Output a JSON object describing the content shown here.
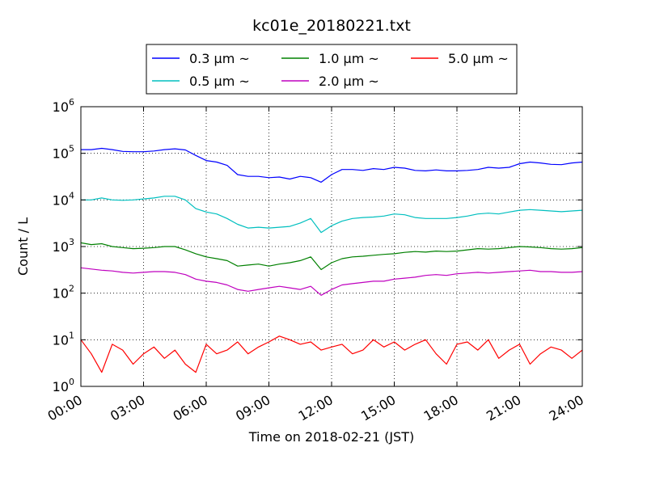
{
  "chart_data": {
    "type": "line",
    "title": "kc01e_20180221.txt",
    "xlabel": "Time on 2018-02-21 (JST)",
    "ylabel": "Count / L",
    "yscale": "log",
    "ylim": [
      1,
      1000000
    ],
    "xlim": [
      "00:00",
      "24:00"
    ],
    "x_ticks": [
      "00:00",
      "03:00",
      "06:00",
      "09:00",
      "12:00",
      "15:00",
      "18:00",
      "21:00",
      "24:00"
    ],
    "y_ticks": [
      {
        "base": "10",
        "exp": "0",
        "value": 1
      },
      {
        "base": "10",
        "exp": "1",
        "value": 10
      },
      {
        "base": "10",
        "exp": "2",
        "value": 100
      },
      {
        "base": "10",
        "exp": "3",
        "value": 1000
      },
      {
        "base": "10",
        "exp": "4",
        "value": 10000
      },
      {
        "base": "10",
        "exp": "5",
        "value": 100000
      },
      {
        "base": "10",
        "exp": "6",
        "value": 1000000
      }
    ],
    "grid": true,
    "legend_position": "top-center",
    "x_hours": [
      0,
      0.5,
      1,
      1.5,
      2,
      2.5,
      3,
      3.5,
      4,
      4.5,
      5,
      5.5,
      6,
      6.5,
      7,
      7.5,
      8,
      8.5,
      9,
      9.5,
      10,
      10.5,
      11,
      11.5,
      12,
      12.5,
      13,
      13.5,
      14,
      14.5,
      15,
      15.5,
      16,
      16.5,
      17,
      17.5,
      18,
      18.5,
      19,
      19.5,
      20,
      20.5,
      21,
      21.5,
      22,
      22.5,
      23,
      23.5,
      24
    ],
    "series": [
      {
        "name": "0.3 μm ~",
        "color": "#0000ff",
        "values": [
          120000,
          120000,
          128000,
          120000,
          110000,
          108000,
          108000,
          112000,
          120000,
          125000,
          118000,
          90000,
          70000,
          65000,
          55000,
          35000,
          32000,
          32000,
          30000,
          31000,
          28000,
          32000,
          30000,
          24000,
          35000,
          45000,
          45000,
          43000,
          47000,
          45000,
          50000,
          48000,
          43000,
          42000,
          44000,
          42000,
          42000,
          43000,
          45000,
          50000,
          48000,
          50000,
          60000,
          65000,
          62000,
          58000,
          57000,
          62000,
          65000
        ]
      },
      {
        "name": "0.5 μm ~",
        "color": "#00bfbf",
        "values": [
          10000,
          10000,
          11000,
          10000,
          9800,
          10000,
          10500,
          11000,
          12000,
          12000,
          10000,
          6500,
          5500,
          5000,
          4000,
          3000,
          2500,
          2600,
          2500,
          2600,
          2700,
          3200,
          4000,
          2000,
          2800,
          3500,
          4000,
          4200,
          4300,
          4500,
          5000,
          4800,
          4200,
          4000,
          4000,
          4000,
          4200,
          4500,
          5000,
          5200,
          5000,
          5500,
          6000,
          6200,
          6000,
          5800,
          5600,
          5800,
          6000
        ]
      },
      {
        "name": "1.0 μm ~",
        "color": "#008000",
        "values": [
          1200,
          1100,
          1150,
          1000,
          950,
          900,
          920,
          950,
          1000,
          1000,
          850,
          700,
          600,
          550,
          500,
          380,
          400,
          420,
          380,
          420,
          450,
          500,
          600,
          320,
          450,
          550,
          600,
          620,
          650,
          680,
          700,
          750,
          780,
          760,
          800,
          780,
          800,
          850,
          900,
          880,
          900,
          950,
          1000,
          980,
          950,
          900,
          880,
          900,
          950
        ]
      },
      {
        "name": "2.0 μm ~",
        "color": "#bf00bf",
        "values": [
          350,
          330,
          310,
          300,
          280,
          270,
          280,
          290,
          290,
          280,
          250,
          200,
          180,
          170,
          150,
          120,
          110,
          120,
          130,
          140,
          130,
          120,
          140,
          90,
          120,
          150,
          160,
          170,
          180,
          180,
          200,
          210,
          220,
          240,
          250,
          240,
          260,
          270,
          280,
          270,
          280,
          290,
          300,
          310,
          290,
          290,
          280,
          280,
          290
        ]
      },
      {
        "name": "5.0 μm ~",
        "color": "#ff0000",
        "values": [
          10,
          5,
          2,
          8,
          6,
          3,
          5,
          7,
          4,
          6,
          3,
          2,
          8,
          5,
          6,
          9,
          5,
          7,
          9,
          12,
          10,
          8,
          9,
          6,
          7,
          8,
          5,
          6,
          10,
          7,
          9,
          6,
          8,
          10,
          5,
          3,
          8,
          9,
          6,
          10,
          4,
          6,
          8,
          3,
          5,
          7,
          6,
          4,
          6
        ]
      }
    ]
  }
}
